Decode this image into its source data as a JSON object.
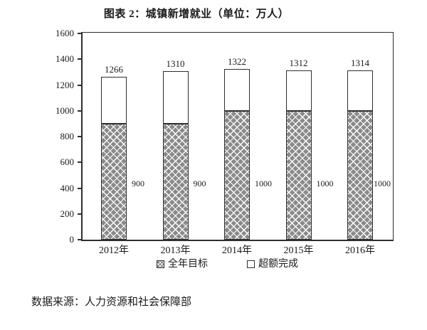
{
  "title": "图表 2：城镇新增就业（单位：万人）",
  "source": "数据来源：人力资源和社会保障部",
  "chart_data": {
    "type": "bar",
    "stacked": true,
    "title": "图表 2：城镇新增就业（单位：万人）",
    "unit": "万人",
    "categories": [
      "2012年",
      "2013年",
      "2014年",
      "2015年",
      "2016年"
    ],
    "series": [
      {
        "name": "全年目标",
        "style": "gray-crosshatch",
        "values": [
          900,
          900,
          1000,
          1000,
          1000
        ]
      },
      {
        "name": "超额完成",
        "style": "white",
        "values": [
          366,
          410,
          322,
          312,
          314
        ]
      }
    ],
    "stack_totals": [
      1266,
      1310,
      1322,
      1312,
      1314
    ],
    "total_labels": [
      "1266",
      "1310",
      "1322",
      "1312",
      "1314"
    ],
    "segment_labels": [
      "900",
      "900",
      "1000",
      "1000",
      "1000"
    ],
    "ylim": [
      0,
      1600
    ],
    "yticks": [
      0,
      200,
      400,
      600,
      800,
      1000,
      1200,
      1400,
      1600
    ],
    "grid": false,
    "legend_position": "bottom",
    "colors": {
      "hatch_fill": "#8a8a8a",
      "hatch_line": "#ffffff",
      "bar_border": "#2e2e2e",
      "axis": "#2e2e2e",
      "text": "#1a1a1a",
      "background": "#ffffff"
    }
  }
}
